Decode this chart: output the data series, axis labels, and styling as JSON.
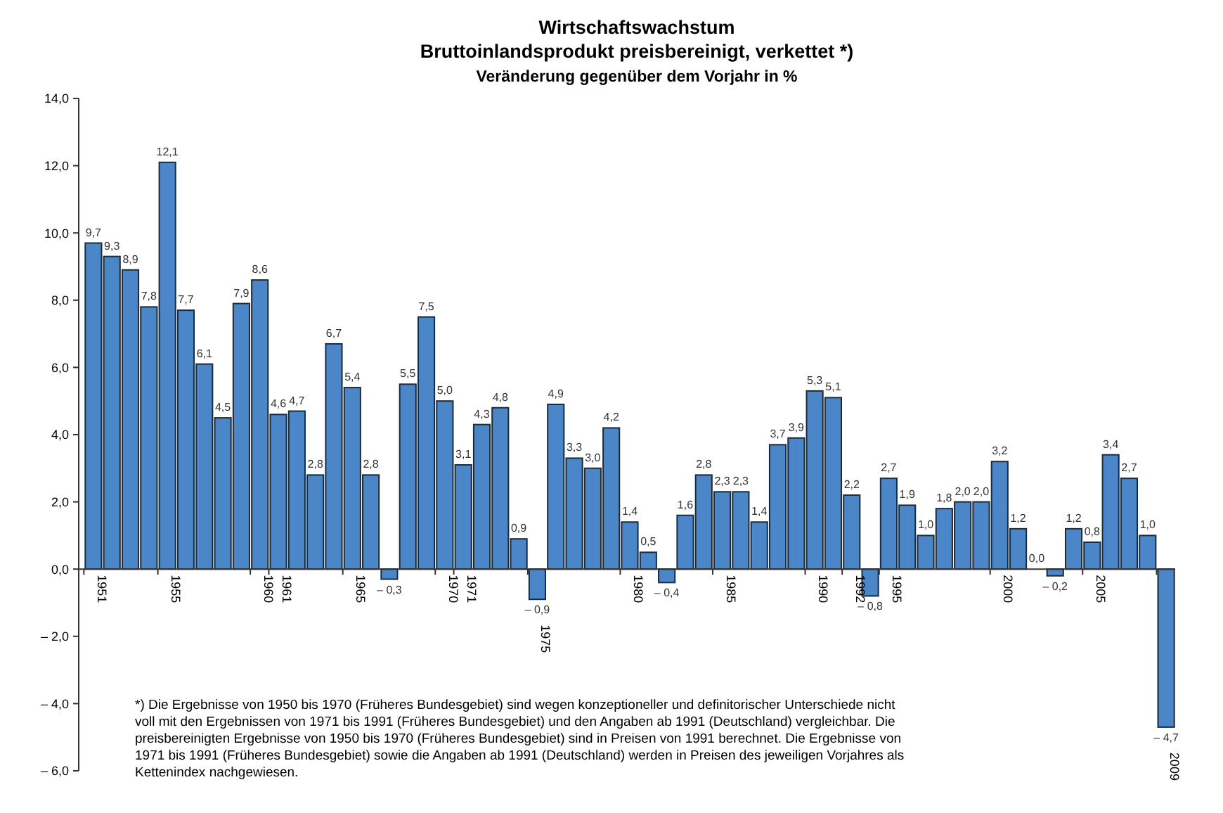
{
  "chart_data": {
    "type": "bar",
    "title": "Wirtschaftswachstum",
    "subtitle": "Bruttoinlandsprodukt preisbereinigt, verkettet *)",
    "ylabel": "Veränderung gegenüber dem Vorjahr in %",
    "categories": [
      "1951",
      null,
      null,
      null,
      "1955",
      null,
      null,
      null,
      null,
      "1960",
      "1961",
      null,
      null,
      null,
      "1965",
      null,
      null,
      null,
      null,
      "1970",
      "1971",
      null,
      null,
      null,
      "1975",
      null,
      null,
      null,
      null,
      "1980",
      null,
      null,
      null,
      null,
      "1985",
      null,
      null,
      null,
      null,
      "1990",
      null,
      "1992",
      null,
      "1995",
      null,
      null,
      null,
      null,
      null,
      "2000",
      null,
      null,
      null,
      null,
      "2005",
      null,
      null,
      null,
      "2009"
    ],
    "values": [
      9.7,
      9.3,
      8.9,
      7.8,
      12.1,
      7.7,
      6.1,
      4.5,
      7.9,
      8.6,
      4.6,
      4.7,
      2.8,
      6.7,
      5.4,
      2.8,
      -0.3,
      5.5,
      7.5,
      5.0,
      3.1,
      4.3,
      4.8,
      0.9,
      -0.9,
      4.9,
      3.3,
      3.0,
      4.2,
      1.4,
      0.5,
      -0.4,
      1.6,
      2.8,
      2.3,
      2.3,
      1.4,
      3.7,
      3.9,
      5.3,
      5.1,
      2.2,
      -0.8,
      2.7,
      1.9,
      1.0,
      1.8,
      2.0,
      2.0,
      3.2,
      1.2,
      0.0,
      -0.2,
      1.2,
      0.8,
      3.4,
      2.7,
      1.0,
      -4.7
    ],
    "value_labels": [
      "9,7",
      "9,3",
      "8,9",
      "7,8",
      "12,1",
      "7,7",
      "6,1",
      "4,5",
      "7,9",
      "8,6",
      "4,6",
      "4,7",
      "2,8",
      "6,7",
      "5,4",
      "2,8",
      "– 0,3",
      "5,5",
      "7,5",
      "5,0",
      "3,1",
      "4,3",
      "4,8",
      "0,9",
      "– 0,9",
      "4,9",
      "3,3",
      "3,0",
      "4,2",
      "1,4",
      "0,5",
      "– 0,4",
      "1,6",
      "2,8",
      "2,3",
      "2,3",
      "1,4",
      "3,7",
      "3,9",
      "5,3",
      "5,1",
      "2,2",
      "– 0,8",
      "2,7",
      "1,9",
      "1,0",
      "1,8",
      "2,0",
      "2,0",
      "3,2",
      "1,2",
      "0,0",
      "– 0,2",
      "1,2",
      "0,8",
      "3,4",
      "2,7",
      "1,0",
      "– 4,7"
    ],
    "color": "#4a86c8",
    "ylim": [
      -6,
      14
    ],
    "yticks": [
      {
        "value": -6,
        "label": "– 6,0"
      },
      {
        "value": -4,
        "label": "– 4,0"
      },
      {
        "value": -2,
        "label": "– 2,0"
      },
      {
        "value": 0,
        "label": "0,0"
      },
      {
        "value": 2,
        "label": "2,0"
      },
      {
        "value": 4,
        "label": "4,0"
      },
      {
        "value": 6,
        "label": "6,0"
      },
      {
        "value": 8,
        "label": "8,0"
      },
      {
        "value": 10,
        "label": "10,0"
      },
      {
        "value": 12,
        "label": "12,0"
      },
      {
        "value": 14,
        "label": "14,0"
      }
    ],
    "grid": false,
    "annotations": [
      "*) Die Ergebnisse von 1950 bis 1970 (Früheres Bundesgebiet) sind wegen konzeptioneller und definitorischer Unterschiede nicht voll mit den Ergebnissen von 1971 bis 1991 (Früheres Bundesgebiet) und den Angaben ab 1991 (Deutschland) vergleichbar. Die preisbereinigten Ergebnisse von 1950 bis 1970 (Früheres Bundesgebiet) sind in Preisen von 1991 berechnet. Die Ergebnisse von 1971 bis 1991 (Früheres Bundesgebiet) sowie die Angaben ab 1991 (Deutschland) werden in Preisen des jeweiligen Vorjahres als Kettenindex nachgewiesen."
    ]
  }
}
